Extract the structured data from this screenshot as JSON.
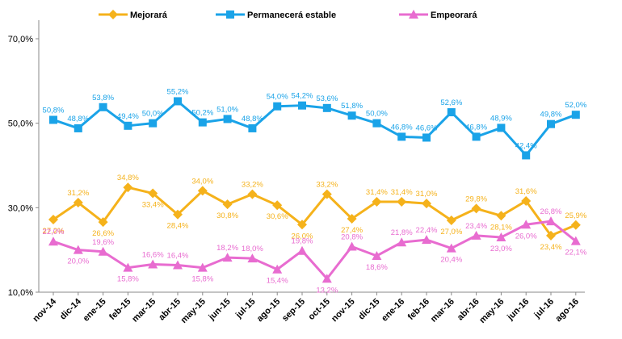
{
  "chart_data": {
    "type": "line",
    "categories": [
      "nov-14",
      "dic-14",
      "ene-15",
      "feb-15",
      "mar-15",
      "abr-15",
      "may-15",
      "jun-15",
      "jul-15",
      "ago-15",
      "sep-15",
      "oct-15",
      "nov-15",
      "dic-15",
      "ene-16",
      "feb-16",
      "mar-16",
      "abr-16",
      "may-16",
      "jun-16",
      "jul-16",
      "ago-16"
    ],
    "yticks": [
      "10,0%",
      "30,0%",
      "50,0%",
      "70,0%"
    ],
    "ylim": [
      10,
      70
    ],
    "grid": false,
    "legend_position": "top",
    "series": [
      {
        "name": "Mejorará",
        "color": "#F5B21B",
        "marker": "diamond",
        "values": [
          27.2,
          31.2,
          26.6,
          34.8,
          33.4,
          28.4,
          34.0,
          30.8,
          33.2,
          30.6,
          26.0,
          33.2,
          27.4,
          31.4,
          31.4,
          31.0,
          27.0,
          29.8,
          28.1,
          31.6,
          23.4,
          25.9
        ],
        "labels": [
          "27,2%",
          "31,2%",
          "26,6%",
          "34,8%",
          "33,4%",
          "28,4%",
          "34,0%",
          "30,8%",
          "33,2%",
          "30,6%",
          "26,0%",
          "33,2%",
          "27,4%",
          "31,4%",
          "31,4%",
          "31,0%",
          "27,0%",
          "29,8%",
          "28,1%",
          "31,6%",
          "23,4%",
          "25,9%"
        ]
      },
      {
        "name": "Permanecerá estable",
        "color": "#1AA3E8",
        "marker": "square",
        "values": [
          50.8,
          48.8,
          53.8,
          49.4,
          50.0,
          55.2,
          50.2,
          51.0,
          48.8,
          54.0,
          54.2,
          53.6,
          51.8,
          50.0,
          46.8,
          46.6,
          52.6,
          46.8,
          48.9,
          42.4,
          49.8,
          52.0
        ],
        "labels": [
          "50,8%",
          "48,8%",
          "53,8%",
          "49,4%",
          "50,0%",
          "55,2%",
          "50,2%",
          "51,0%",
          "48,8%",
          "54,0%",
          "54,2%",
          "53,6%",
          "51,8%",
          "50,0%",
          "46,8%",
          "46,6%",
          "52,6%",
          "46,8%",
          "48,9%",
          "42,4%",
          "49,8%",
          "52,0%"
        ]
      },
      {
        "name": "Empeorará",
        "color": "#E86CD0",
        "marker": "triangle",
        "values": [
          22.0,
          20.0,
          19.6,
          15.8,
          16.6,
          16.4,
          15.8,
          18.2,
          18.0,
          15.4,
          19.8,
          13.2,
          20.8,
          18.6,
          21.8,
          22.4,
          20.4,
          23.4,
          23.0,
          26.0,
          26.8,
          22.1
        ],
        "labels": [
          "22,0%",
          "20,0%",
          "19,6%",
          "15,8%",
          "16,6%",
          "16,4%",
          "15,8%",
          "18,2%",
          "18,0%",
          "15,4%",
          "19,8%",
          "13,2%",
          "20,8%",
          "18,6%",
          "21,8%",
          "22,4%",
          "20,4%",
          "23,4%",
          "23,0%",
          "26,0%",
          "26,8%",
          "22,1%"
        ]
      }
    ]
  }
}
